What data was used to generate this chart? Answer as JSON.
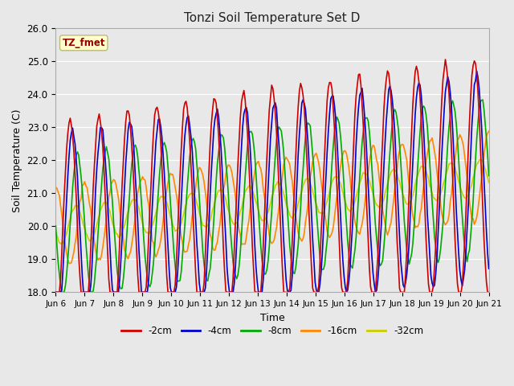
{
  "title": "Tonzi Soil Temperature Set D",
  "xlabel": "Time",
  "ylabel": "Soil Temperature (C)",
  "ylim": [
    18.0,
    26.0
  ],
  "yticks": [
    18.0,
    19.0,
    20.0,
    21.0,
    22.0,
    23.0,
    24.0,
    25.0,
    26.0
  ],
  "xtick_labels": [
    "Jun 6",
    "Jun 7",
    " Jun 8",
    "Jun 9",
    "Jun 10",
    "Jun 11",
    "Jun 12",
    "Jun 13",
    "Jun 14",
    "Jun 15",
    "Jun 16",
    "Jun 17",
    "Jun 18",
    "Jun 19",
    "Jun 20",
    "Jun 21"
  ],
  "legend_labels": [
    "-2cm",
    "-4cm",
    "-8cm",
    "-16cm",
    "-32cm"
  ],
  "legend_colors": [
    "#cc0000",
    "#0000cc",
    "#00aa00",
    "#ff8800",
    "#cccc00"
  ],
  "annotation_text": "TZ_fmet",
  "annotation_color": "#990000",
  "annotation_bg": "#ffffcc",
  "fig_bg_color": "#e8e8e8",
  "plot_bg_color": "#e8e8e8",
  "grid_color": "#ffffff",
  "n_points": 360,
  "days": 15,
  "line_width": 1.2,
  "figsize": [
    6.4,
    4.8
  ],
  "dpi": 100
}
